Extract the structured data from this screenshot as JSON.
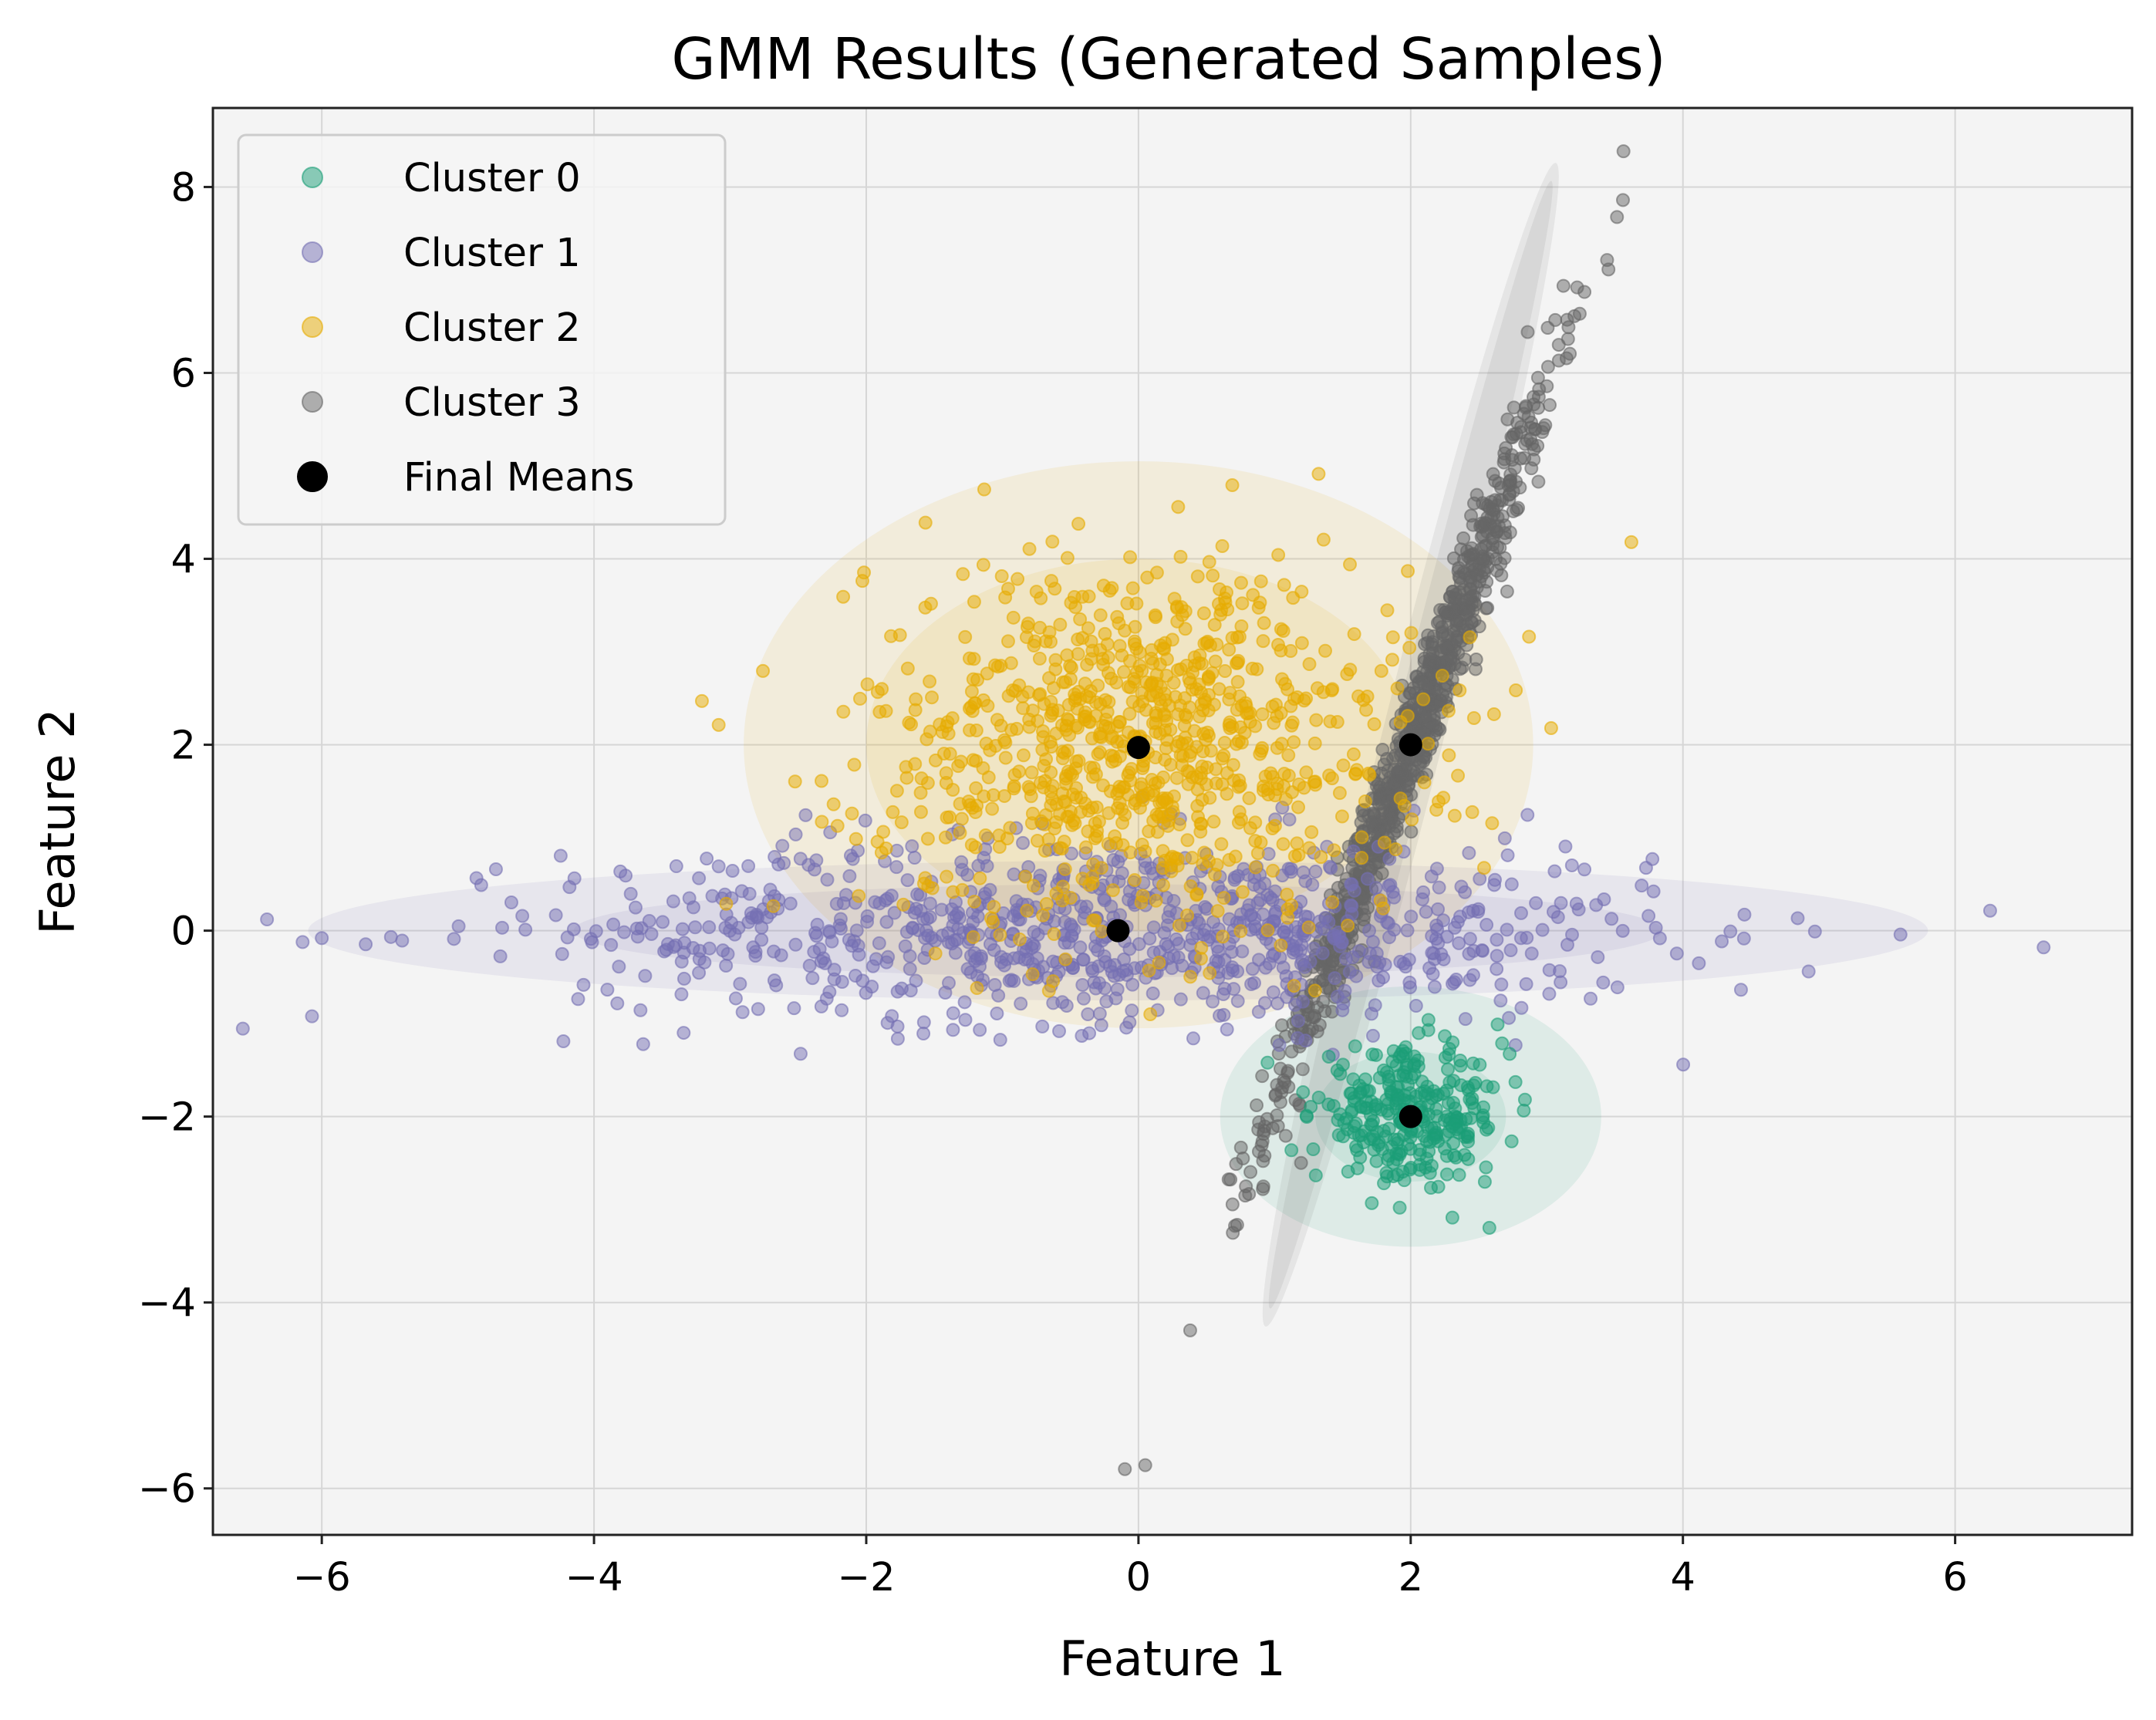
{
  "chart_data": {
    "type": "scatter",
    "title": "GMM Results (Generated Samples)",
    "xlabel": "Feature 1",
    "ylabel": "Feature 2",
    "xlim": [
      -6.8,
      7.3
    ],
    "ylim": [
      -6.5,
      8.85
    ],
    "xticks": [
      -6,
      -4,
      -2,
      0,
      2,
      4,
      6
    ],
    "yticks": [
      -6,
      -4,
      -2,
      0,
      2,
      4,
      6,
      8
    ],
    "xtick_labels": [
      "−6",
      "−4",
      "−2",
      "0",
      "2",
      "4",
      "6"
    ],
    "ytick_labels": [
      "−6",
      "−4",
      "−2",
      "0",
      "2",
      "4",
      "6",
      "8"
    ],
    "grid": true,
    "legend_position": "top-left",
    "background": "#f4f4f4",
    "series": [
      {
        "name": "Cluster 0",
        "color": "#1b9e77",
        "mean": [
          2.0,
          -2.0
        ],
        "std": [
          0.35,
          0.35
        ],
        "corr": 0.0,
        "n": 300,
        "ellipses": [
          {
            "width": 1.4,
            "height": 1.4,
            "angle": 0
          },
          {
            "width": 2.8,
            "height": 2.8,
            "angle": 0
          }
        ]
      },
      {
        "name": "Cluster 1",
        "color": "#7570b3",
        "mean": [
          -0.15,
          0.0
        ],
        "std": [
          2.0,
          0.5
        ],
        "corr": 0.0,
        "n": 900,
        "ellipses": [
          {
            "width": 8.0,
            "height": 1.0,
            "angle": 0
          },
          {
            "width": 11.9,
            "height": 1.5,
            "angle": 0
          }
        ]
      },
      {
        "name": "Cluster 2",
        "color": "#e6ab02",
        "mean": [
          0.0,
          2.0
        ],
        "std": [
          1.0,
          1.0
        ],
        "corr": 0.0,
        "n": 900,
        "ellipses": [
          {
            "width": 4.0,
            "height": 4.0,
            "angle": 0
          },
          {
            "width": 5.8,
            "height": 6.1,
            "angle": 0
          }
        ]
      },
      {
        "name": "Cluster 3",
        "color": "#666666",
        "mean": [
          2.0,
          2.0
        ],
        "std": [
          0.52,
          2.0
        ],
        "corr": 0.985,
        "n": 900,
        "ellipses": [
          {
            "width": 0.3,
            "height": 12.5,
            "angle": 14
          },
          {
            "width": 0.45,
            "height": 12.9,
            "angle": 14
          }
        ]
      }
    ],
    "final_means": {
      "name": "Final Means",
      "color": "#000000",
      "points": [
        [
          2.0,
          -2.0
        ],
        [
          -0.15,
          0.0
        ],
        [
          0.0,
          1.97
        ],
        [
          2.0,
          2.0
        ]
      ]
    },
    "outliers": [
      {
        "series": 3,
        "x": 0.05,
        "y": -5.75
      },
      {
        "series": 3,
        "x": 0.38,
        "y": -4.3
      },
      {
        "series": 1,
        "x": 6.65,
        "y": -0.18
      },
      {
        "series": 1,
        "x": -6.0,
        "y": -0.08
      }
    ]
  }
}
